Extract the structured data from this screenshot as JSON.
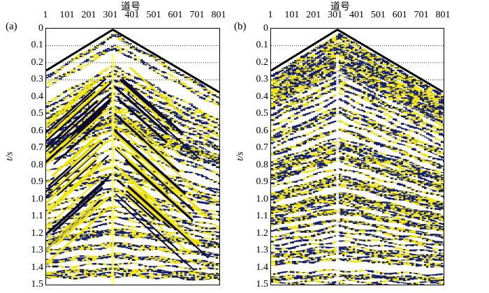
{
  "figure": {
    "trace_axis_title": "道号",
    "time_axis_title": "t/s",
    "trace_ticks": [
      "1",
      "101",
      "201",
      "301",
      "401",
      "501",
      "601",
      "701",
      "801"
    ],
    "time_ticks": [
      "0",
      "0.1",
      "0.2",
      "0.3",
      "0.4",
      "0.5",
      "0.6",
      "0.7",
      "0.8",
      "0.9",
      "1.0",
      "1.1",
      "1.2",
      "1.3",
      "1.4",
      "1.5"
    ],
    "colors": {
      "positive_fill": "#f2e600",
      "negative_wiggle": "#141e6e",
      "gridline": "#000000",
      "background": "#ffffff"
    }
  },
  "panels": [
    {
      "id": "a",
      "label": "(a)",
      "gridline_times": [
        0.1,
        0.2,
        0.3
      ],
      "noise_level": "strong"
    },
    {
      "id": "b",
      "label": "(b)",
      "gridline_times": [
        0.1,
        0.2,
        0.3
      ],
      "noise_level": "attenuated"
    }
  ]
}
